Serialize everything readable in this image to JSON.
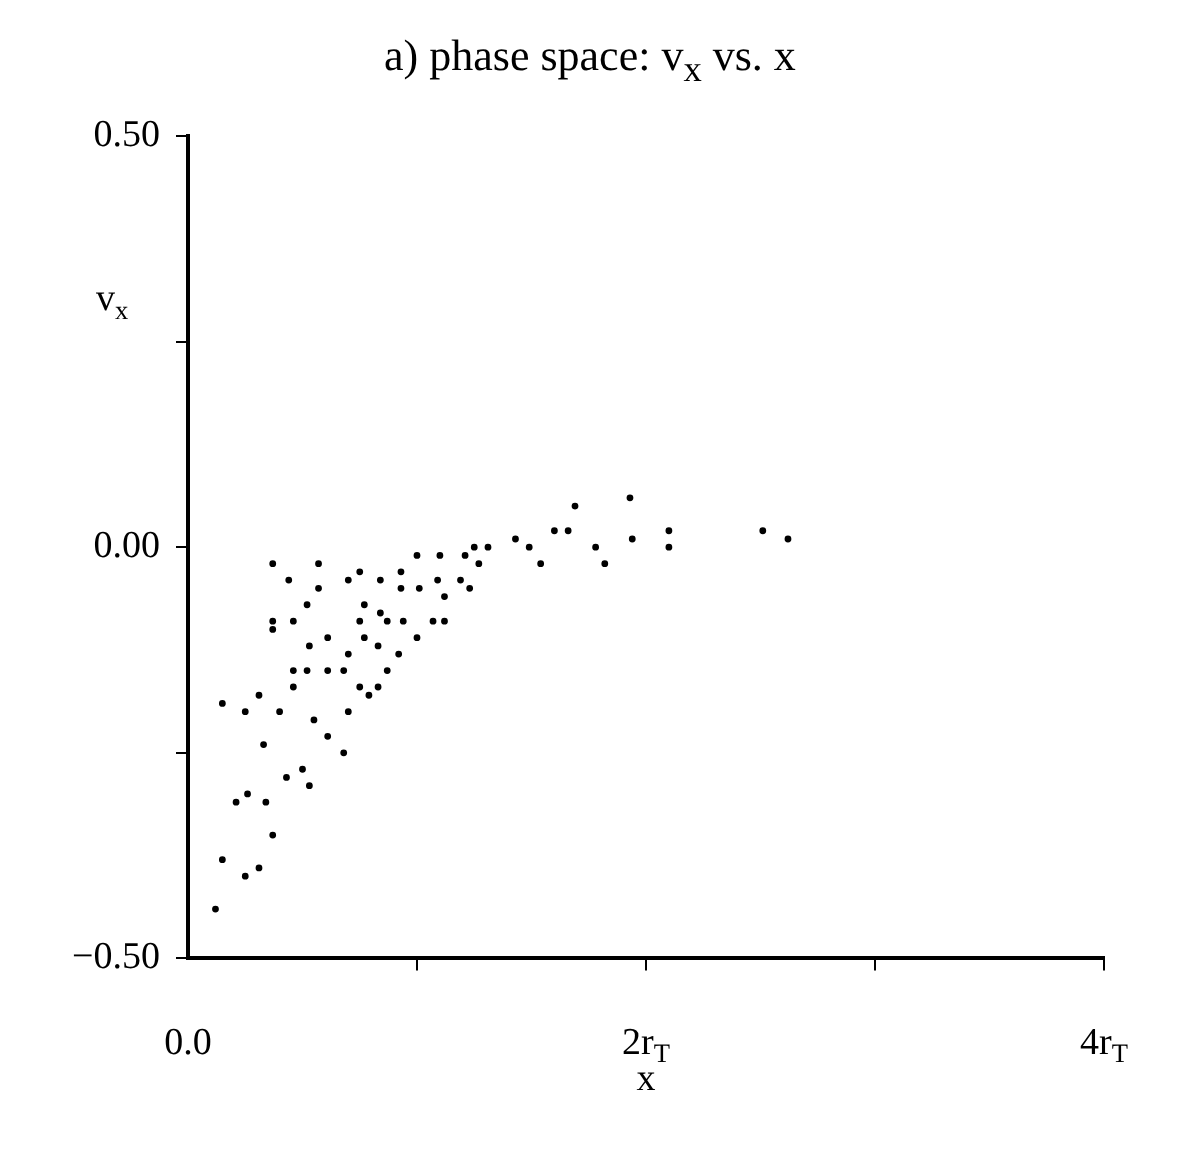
{
  "chart_data": {
    "type": "scatter",
    "title": "a) phase space: v$_{x}$ vs. x",
    "xlabel": "x",
    "ylabel": "v$_{x}$",
    "xlim": [
      0,
      4
    ],
    "xticks": [
      {
        "value": 0,
        "label": "0.0"
      },
      {
        "value": 1,
        "label": null
      },
      {
        "value": 2,
        "label": "2r$_{T}$"
      },
      {
        "value": 3,
        "label": null
      },
      {
        "value": 4,
        "label": "4r$_{T}$"
      }
    ],
    "ylim": [
      -0.5,
      0.5
    ],
    "yticks": [
      {
        "value": -0.5,
        "label": "−0.50"
      },
      {
        "value": -0.25,
        "label": null
      },
      {
        "value": 0,
        "label": "0.00"
      },
      {
        "value": 0.25,
        "label": null
      },
      {
        "value": 0.5,
        "label": "0.50"
      }
    ],
    "grid": false,
    "marker": "circle",
    "series": [
      {
        "color": "#000000",
        "x": [
          0.12,
          0.15,
          0.25,
          0.31,
          0.21,
          0.26,
          0.34,
          0.37,
          0.33,
          0.5,
          0.53,
          0.43,
          0.15,
          0.25,
          0.31,
          0.4,
          0.46,
          0.55,
          0.61,
          0.68,
          0.7,
          0.79,
          0.83,
          0.75,
          0.52,
          0.46,
          0.61,
          0.68,
          0.87,
          0.92,
          0.7,
          0.53,
          0.77,
          0.83,
          0.37,
          0.37,
          0.46,
          0.61,
          0.75,
          0.87,
          1.0,
          0.94,
          1.07,
          1.12,
          0.84,
          0.52,
          0.37,
          0.44,
          0.57,
          0.57,
          0.7,
          0.75,
          0.77,
          0.84,
          0.93,
          0.93,
          1.0,
          1.01,
          1.12,
          1.09,
          1.19,
          1.23,
          1.1,
          1.21,
          1.27,
          1.31,
          1.25,
          1.43,
          1.49,
          1.54,
          1.6,
          1.66,
          1.69,
          1.82,
          1.78,
          1.93,
          1.94,
          2.1,
          2.1,
          2.51,
          2.62
        ],
        "values": [
          -0.44,
          -0.38,
          -0.4,
          -0.39,
          -0.31,
          -0.3,
          -0.31,
          -0.35,
          -0.24,
          -0.27,
          -0.29,
          -0.28,
          -0.19,
          -0.2,
          -0.18,
          -0.2,
          -0.17,
          -0.21,
          -0.23,
          -0.25,
          -0.2,
          -0.18,
          -0.17,
          -0.17,
          -0.15,
          -0.15,
          -0.15,
          -0.15,
          -0.15,
          -0.13,
          -0.13,
          -0.12,
          -0.11,
          -0.12,
          -0.1,
          -0.09,
          -0.09,
          -0.11,
          -0.09,
          -0.09,
          -0.11,
          -0.09,
          -0.09,
          -0.09,
          -0.08,
          -0.07,
          -0.02,
          -0.04,
          -0.02,
          -0.05,
          -0.04,
          -0.03,
          -0.07,
          -0.04,
          -0.05,
          -0.03,
          -0.01,
          -0.05,
          -0.06,
          -0.04,
          -0.04,
          -0.05,
          -0.01,
          -0.01,
          -0.02,
          0.0,
          0.0,
          0.01,
          0.0,
          -0.02,
          0.02,
          0.02,
          0.05,
          -0.02,
          0.0,
          0.06,
          0.01,
          0.02,
          0.0,
          0.02,
          0.01
        ]
      }
    ]
  }
}
